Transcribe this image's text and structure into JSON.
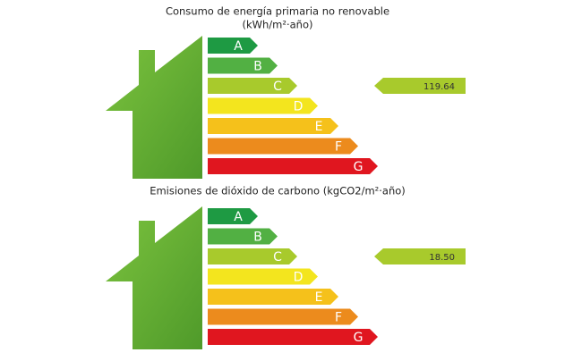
{
  "sections": [
    {
      "title": "Consumo de energía primaria no renovable",
      "subtitle": "(kWh/m²·año)",
      "ratings": [
        "A",
        "B",
        "C",
        "D",
        "E",
        "F",
        "G"
      ],
      "indicator": "119.64"
    },
    {
      "title": "Emisiones de dióxido de carbono (kgCO2/m²·año)",
      "ratings": [
        "A",
        "B",
        "C",
        "D",
        "E",
        "F",
        "G"
      ],
      "indicator": "18.50"
    }
  ]
}
